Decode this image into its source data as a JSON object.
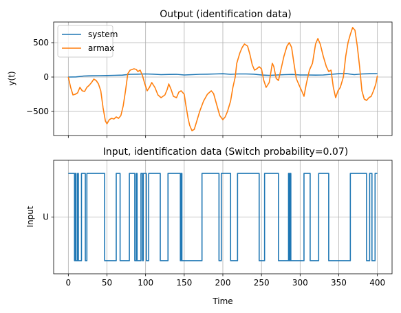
{
  "chart_data": [
    {
      "type": "line",
      "title": "Output (identification data)",
      "xlabel": "",
      "ylabel": "y(t)",
      "xlim": [
        -19,
        419
      ],
      "ylim": [
        -850,
        800
      ],
      "xticks": [
        0,
        50,
        100,
        150,
        200,
        250,
        300,
        350,
        400
      ],
      "yticks": [
        -500,
        0,
        500
      ],
      "ytick_labels": [
        "−500",
        "0",
        "500"
      ],
      "xtick_labels_visible": false,
      "grid": true,
      "legend": "top-left",
      "series": [
        {
          "name": "system",
          "color": "#1f77b4",
          "points": [
            [
              0,
              0
            ],
            [
              10,
              2
            ],
            [
              20,
              15
            ],
            [
              30,
              18
            ],
            [
              40,
              20
            ],
            [
              50,
              22
            ],
            [
              60,
              25
            ],
            [
              70,
              28
            ],
            [
              80,
              40
            ],
            [
              90,
              42
            ],
            [
              100,
              45
            ],
            [
              110,
              42
            ],
            [
              120,
              35
            ],
            [
              130,
              38
            ],
            [
              140,
              40
            ],
            [
              150,
              30
            ],
            [
              160,
              35
            ],
            [
              170,
              40
            ],
            [
              180,
              42
            ],
            [
              190,
              45
            ],
            [
              200,
              48
            ],
            [
              210,
              40
            ],
            [
              220,
              45
            ],
            [
              230,
              45
            ],
            [
              240,
              42
            ],
            [
              250,
              30
            ],
            [
              260,
              25
            ],
            [
              270,
              30
            ],
            [
              280,
              35
            ],
            [
              290,
              38
            ],
            [
              300,
              30
            ],
            [
              310,
              30
            ],
            [
              320,
              28
            ],
            [
              330,
              30
            ],
            [
              340,
              40
            ],
            [
              350,
              48
            ],
            [
              360,
              50
            ],
            [
              370,
              35
            ],
            [
              380,
              45
            ],
            [
              390,
              48
            ],
            [
              400,
              50
            ]
          ]
        },
        {
          "name": "armax",
          "color": "#ff7f0e",
          "points": [
            [
              0,
              0
            ],
            [
              3,
              -150
            ],
            [
              6,
              -260
            ],
            [
              9,
              -250
            ],
            [
              12,
              -230
            ],
            [
              15,
              -150
            ],
            [
              18,
              -200
            ],
            [
              21,
              -210
            ],
            [
              24,
              -150
            ],
            [
              27,
              -120
            ],
            [
              30,
              -80
            ],
            [
              33,
              -30
            ],
            [
              36,
              -50
            ],
            [
              39,
              -100
            ],
            [
              42,
              -200
            ],
            [
              45,
              -450
            ],
            [
              48,
              -640
            ],
            [
              50,
              -680
            ],
            [
              53,
              -620
            ],
            [
              56,
              -600
            ],
            [
              59,
              -610
            ],
            [
              62,
              -580
            ],
            [
              65,
              -600
            ],
            [
              68,
              -560
            ],
            [
              71,
              -420
            ],
            [
              74,
              -200
            ],
            [
              77,
              50
            ],
            [
              80,
              100
            ],
            [
              85,
              120
            ],
            [
              88,
              110
            ],
            [
              90,
              80
            ],
            [
              93,
              100
            ],
            [
              96,
              20
            ],
            [
              99,
              -100
            ],
            [
              102,
              -200
            ],
            [
              105,
              -150
            ],
            [
              108,
              -80
            ],
            [
              112,
              -150
            ],
            [
              116,
              -260
            ],
            [
              120,
              -300
            ],
            [
              125,
              -260
            ],
            [
              128,
              -180
            ],
            [
              130,
              -100
            ],
            [
              133,
              -180
            ],
            [
              136,
              -280
            ],
            [
              140,
              -300
            ],
            [
              143,
              -220
            ],
            [
              146,
              -200
            ],
            [
              150,
              -250
            ],
            [
              152,
              -400
            ],
            [
              155,
              -600
            ],
            [
              157,
              -700
            ],
            [
              160,
              -780
            ],
            [
              163,
              -760
            ],
            [
              166,
              -650
            ],
            [
              170,
              -500
            ],
            [
              175,
              -350
            ],
            [
              180,
              -250
            ],
            [
              185,
              -200
            ],
            [
              188,
              -240
            ],
            [
              192,
              -400
            ],
            [
              196,
              -560
            ],
            [
              200,
              -620
            ],
            [
              203,
              -580
            ],
            [
              206,
              -500
            ],
            [
              210,
              -350
            ],
            [
              213,
              -150
            ],
            [
              216,
              0
            ],
            [
              218,
              200
            ],
            [
              222,
              350
            ],
            [
              225,
              430
            ],
            [
              228,
              480
            ],
            [
              232,
              450
            ],
            [
              235,
              330
            ],
            [
              238,
              180
            ],
            [
              241,
              100
            ],
            [
              244,
              120
            ],
            [
              247,
              150
            ],
            [
              250,
              120
            ],
            [
              253,
              -50
            ],
            [
              256,
              -150
            ],
            [
              260,
              -80
            ],
            [
              264,
              200
            ],
            [
              266,
              150
            ],
            [
              269,
              -20
            ],
            [
              272,
              -50
            ],
            [
              275,
              100
            ],
            [
              279,
              300
            ],
            [
              283,
              450
            ],
            [
              286,
              500
            ],
            [
              289,
              430
            ],
            [
              292,
              200
            ],
            [
              295,
              -20
            ],
            [
              298,
              -100
            ],
            [
              302,
              -200
            ],
            [
              305,
              -280
            ],
            [
              308,
              -100
            ],
            [
              312,
              100
            ],
            [
              316,
              200
            ],
            [
              320,
              480
            ],
            [
              323,
              560
            ],
            [
              326,
              480
            ],
            [
              330,
              300
            ],
            [
              334,
              150
            ],
            [
              337,
              80
            ],
            [
              340,
              100
            ],
            [
              343,
              -150
            ],
            [
              346,
              -300
            ],
            [
              349,
              -200
            ],
            [
              352,
              -150
            ],
            [
              356,
              0
            ],
            [
              359,
              300
            ],
            [
              362,
              500
            ],
            [
              365,
              620
            ],
            [
              368,
              720
            ],
            [
              371,
              680
            ],
            [
              374,
              450
            ],
            [
              377,
              150
            ],
            [
              380,
              -200
            ],
            [
              383,
              -320
            ],
            [
              386,
              -340
            ],
            [
              389,
              -300
            ],
            [
              392,
              -280
            ],
            [
              395,
              -200
            ],
            [
              398,
              -100
            ],
            [
              400,
              20
            ]
          ]
        }
      ]
    },
    {
      "type": "line",
      "title": "Input, identification data (Switch probability=0.07)",
      "xlabel": "Time",
      "ylabel": "Input",
      "xlim": [
        -19,
        419
      ],
      "ylim": [
        -1.3,
        1.3
      ],
      "xticks": [
        0,
        50,
        100,
        150,
        200,
        250,
        300,
        350,
        400
      ],
      "yticks": [
        0
      ],
      "ytick_labels": [
        "U"
      ],
      "grid": true,
      "series": [
        {
          "name": "",
          "color": "#1f77b4",
          "x": [
            0,
            8,
            8,
            9,
            9,
            10,
            10,
            12,
            12,
            13,
            13,
            17,
            17,
            22,
            22,
            24,
            24,
            47,
            47,
            62,
            62,
            67,
            67,
            79,
            79,
            86,
            86,
            88,
            88,
            89,
            89,
            94,
            94,
            96,
            96,
            97,
            97,
            101,
            101,
            104,
            104,
            119,
            119,
            129,
            129,
            145,
            145,
            146,
            146,
            147,
            147,
            173,
            173,
            195,
            195,
            198,
            198,
            210,
            210,
            219,
            219,
            247,
            247,
            254,
            254,
            272,
            272,
            285,
            285,
            286,
            286,
            287,
            287,
            288,
            288,
            305,
            305,
            313,
            313,
            324,
            324,
            337,
            337,
            365,
            365,
            386,
            386,
            390,
            390,
            393,
            393,
            397,
            397,
            400
          ],
          "y": [
            1,
            1,
            -1,
            -1,
            1,
            1,
            -1,
            -1,
            1,
            1,
            -1,
            -1,
            1,
            1,
            -1,
            -1,
            1,
            1,
            -1,
            -1,
            1,
            1,
            -1,
            -1,
            1,
            1,
            -1,
            -1,
            1,
            1,
            -1,
            -1,
            1,
            1,
            -1,
            -1,
            1,
            1,
            -1,
            -1,
            1,
            1,
            -1,
            -1,
            1,
            1,
            -1,
            -1,
            1,
            1,
            -1,
            -1,
            1,
            1,
            -1,
            -1,
            1,
            1,
            -1,
            -1,
            1,
            1,
            -1,
            -1,
            1,
            1,
            -1,
            -1,
            1,
            1,
            -1,
            -1,
            1,
            1,
            -1,
            -1,
            1,
            1,
            -1,
            -1,
            1,
            1,
            -1,
            -1,
            1,
            1,
            -1,
            -1,
            1,
            1,
            -1,
            -1,
            1,
            1
          ]
        }
      ]
    }
  ]
}
